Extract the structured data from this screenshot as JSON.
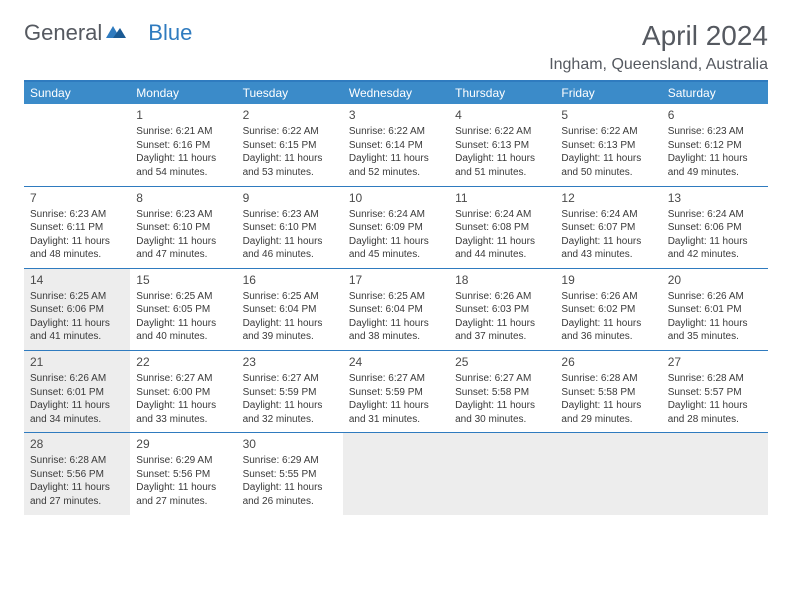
{
  "logo": {
    "part1": "General",
    "part2": "Blue"
  },
  "title": "April 2024",
  "location": "Ingham, Queensland, Australia",
  "colors": {
    "header_bg": "#3b8bc9",
    "header_text": "#ffffff",
    "border": "#2f7bbf",
    "shaded_bg": "#ededed",
    "text": "#3a3a3a",
    "title_text": "#555960"
  },
  "day_headers": [
    "Sunday",
    "Monday",
    "Tuesday",
    "Wednesday",
    "Thursday",
    "Friday",
    "Saturday"
  ],
  "weeks": [
    [
      {
        "day": "",
        "sunrise": "",
        "sunset": "",
        "daylight": "",
        "shaded": false
      },
      {
        "day": "1",
        "sunrise": "Sunrise: 6:21 AM",
        "sunset": "Sunset: 6:16 PM",
        "daylight": "Daylight: 11 hours and 54 minutes.",
        "shaded": false
      },
      {
        "day": "2",
        "sunrise": "Sunrise: 6:22 AM",
        "sunset": "Sunset: 6:15 PM",
        "daylight": "Daylight: 11 hours and 53 minutes.",
        "shaded": false
      },
      {
        "day": "3",
        "sunrise": "Sunrise: 6:22 AM",
        "sunset": "Sunset: 6:14 PM",
        "daylight": "Daylight: 11 hours and 52 minutes.",
        "shaded": false
      },
      {
        "day": "4",
        "sunrise": "Sunrise: 6:22 AM",
        "sunset": "Sunset: 6:13 PM",
        "daylight": "Daylight: 11 hours and 51 minutes.",
        "shaded": false
      },
      {
        "day": "5",
        "sunrise": "Sunrise: 6:22 AM",
        "sunset": "Sunset: 6:13 PM",
        "daylight": "Daylight: 11 hours and 50 minutes.",
        "shaded": false
      },
      {
        "day": "6",
        "sunrise": "Sunrise: 6:23 AM",
        "sunset": "Sunset: 6:12 PM",
        "daylight": "Daylight: 11 hours and 49 minutes.",
        "shaded": false
      }
    ],
    [
      {
        "day": "7",
        "sunrise": "Sunrise: 6:23 AM",
        "sunset": "Sunset: 6:11 PM",
        "daylight": "Daylight: 11 hours and 48 minutes.",
        "shaded": false
      },
      {
        "day": "8",
        "sunrise": "Sunrise: 6:23 AM",
        "sunset": "Sunset: 6:10 PM",
        "daylight": "Daylight: 11 hours and 47 minutes.",
        "shaded": false
      },
      {
        "day": "9",
        "sunrise": "Sunrise: 6:23 AM",
        "sunset": "Sunset: 6:10 PM",
        "daylight": "Daylight: 11 hours and 46 minutes.",
        "shaded": false
      },
      {
        "day": "10",
        "sunrise": "Sunrise: 6:24 AM",
        "sunset": "Sunset: 6:09 PM",
        "daylight": "Daylight: 11 hours and 45 minutes.",
        "shaded": false
      },
      {
        "day": "11",
        "sunrise": "Sunrise: 6:24 AM",
        "sunset": "Sunset: 6:08 PM",
        "daylight": "Daylight: 11 hours and 44 minutes.",
        "shaded": false
      },
      {
        "day": "12",
        "sunrise": "Sunrise: 6:24 AM",
        "sunset": "Sunset: 6:07 PM",
        "daylight": "Daylight: 11 hours and 43 minutes.",
        "shaded": false
      },
      {
        "day": "13",
        "sunrise": "Sunrise: 6:24 AM",
        "sunset": "Sunset: 6:06 PM",
        "daylight": "Daylight: 11 hours and 42 minutes.",
        "shaded": false
      }
    ],
    [
      {
        "day": "14",
        "sunrise": "Sunrise: 6:25 AM",
        "sunset": "Sunset: 6:06 PM",
        "daylight": "Daylight: 11 hours and 41 minutes.",
        "shaded": true
      },
      {
        "day": "15",
        "sunrise": "Sunrise: 6:25 AM",
        "sunset": "Sunset: 6:05 PM",
        "daylight": "Daylight: 11 hours and 40 minutes.",
        "shaded": false
      },
      {
        "day": "16",
        "sunrise": "Sunrise: 6:25 AM",
        "sunset": "Sunset: 6:04 PM",
        "daylight": "Daylight: 11 hours and 39 minutes.",
        "shaded": false
      },
      {
        "day": "17",
        "sunrise": "Sunrise: 6:25 AM",
        "sunset": "Sunset: 6:04 PM",
        "daylight": "Daylight: 11 hours and 38 minutes.",
        "shaded": false
      },
      {
        "day": "18",
        "sunrise": "Sunrise: 6:26 AM",
        "sunset": "Sunset: 6:03 PM",
        "daylight": "Daylight: 11 hours and 37 minutes.",
        "shaded": false
      },
      {
        "day": "19",
        "sunrise": "Sunrise: 6:26 AM",
        "sunset": "Sunset: 6:02 PM",
        "daylight": "Daylight: 11 hours and 36 minutes.",
        "shaded": false
      },
      {
        "day": "20",
        "sunrise": "Sunrise: 6:26 AM",
        "sunset": "Sunset: 6:01 PM",
        "daylight": "Daylight: 11 hours and 35 minutes.",
        "shaded": false
      }
    ],
    [
      {
        "day": "21",
        "sunrise": "Sunrise: 6:26 AM",
        "sunset": "Sunset: 6:01 PM",
        "daylight": "Daylight: 11 hours and 34 minutes.",
        "shaded": true
      },
      {
        "day": "22",
        "sunrise": "Sunrise: 6:27 AM",
        "sunset": "Sunset: 6:00 PM",
        "daylight": "Daylight: 11 hours and 33 minutes.",
        "shaded": false
      },
      {
        "day": "23",
        "sunrise": "Sunrise: 6:27 AM",
        "sunset": "Sunset: 5:59 PM",
        "daylight": "Daylight: 11 hours and 32 minutes.",
        "shaded": false
      },
      {
        "day": "24",
        "sunrise": "Sunrise: 6:27 AM",
        "sunset": "Sunset: 5:59 PM",
        "daylight": "Daylight: 11 hours and 31 minutes.",
        "shaded": false
      },
      {
        "day": "25",
        "sunrise": "Sunrise: 6:27 AM",
        "sunset": "Sunset: 5:58 PM",
        "daylight": "Daylight: 11 hours and 30 minutes.",
        "shaded": false
      },
      {
        "day": "26",
        "sunrise": "Sunrise: 6:28 AM",
        "sunset": "Sunset: 5:58 PM",
        "daylight": "Daylight: 11 hours and 29 minutes.",
        "shaded": false
      },
      {
        "day": "27",
        "sunrise": "Sunrise: 6:28 AM",
        "sunset": "Sunset: 5:57 PM",
        "daylight": "Daylight: 11 hours and 28 minutes.",
        "shaded": false
      }
    ],
    [
      {
        "day": "28",
        "sunrise": "Sunrise: 6:28 AM",
        "sunset": "Sunset: 5:56 PM",
        "daylight": "Daylight: 11 hours and 27 minutes.",
        "shaded": true
      },
      {
        "day": "29",
        "sunrise": "Sunrise: 6:29 AM",
        "sunset": "Sunset: 5:56 PM",
        "daylight": "Daylight: 11 hours and 27 minutes.",
        "shaded": false
      },
      {
        "day": "30",
        "sunrise": "Sunrise: 6:29 AM",
        "sunset": "Sunset: 5:55 PM",
        "daylight": "Daylight: 11 hours and 26 minutes.",
        "shaded": false
      },
      {
        "day": "",
        "sunrise": "",
        "sunset": "",
        "daylight": "",
        "shaded": true
      },
      {
        "day": "",
        "sunrise": "",
        "sunset": "",
        "daylight": "",
        "shaded": true
      },
      {
        "day": "",
        "sunrise": "",
        "sunset": "",
        "daylight": "",
        "shaded": true
      },
      {
        "day": "",
        "sunrise": "",
        "sunset": "",
        "daylight": "",
        "shaded": true
      }
    ]
  ]
}
